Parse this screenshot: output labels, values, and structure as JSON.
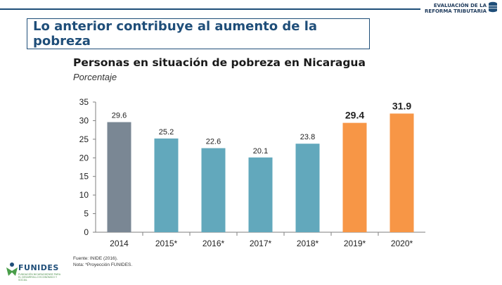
{
  "header": {
    "brand_line1": "EVALUACIÓN DE LA",
    "brand_line2": "REFORMA TRIBUTARIA",
    "headline": "Lo anterior contribuye al aumento de la pobreza"
  },
  "footer": {
    "source": "Fuente: INIDE (2016).",
    "note": "Nota: *Proyección FUNIDES.",
    "logo_name": "FUNIDES",
    "logo_tagline": "FUNDACIÓN NICARAGÜENSE PARA EL DESARROLLO ECONÓMICO Y SOCIAL"
  },
  "colors": {
    "accent": "#1f4e79",
    "historic": "#7a8794",
    "actual": "#62a8bc",
    "projection": "#f79646"
  },
  "chart_data": {
    "type": "bar",
    "title": "Personas en situación de pobreza en Nicaragua",
    "subtitle": "Porcentaje",
    "categories": [
      "2014",
      "2015*",
      "2016*",
      "2017*",
      "2018*",
      "2019*",
      "2020*"
    ],
    "values": [
      29.6,
      25.2,
      22.6,
      20.1,
      23.8,
      29.4,
      31.9
    ],
    "bar_colors": [
      "#7a8794",
      "#62a8bc",
      "#62a8bc",
      "#62a8bc",
      "#62a8bc",
      "#f79646",
      "#f79646"
    ],
    "ylim": [
      0,
      35
    ],
    "yticks": [
      0,
      5,
      10,
      15,
      20,
      25,
      30,
      35
    ],
    "grid": false,
    "legend": "none"
  }
}
